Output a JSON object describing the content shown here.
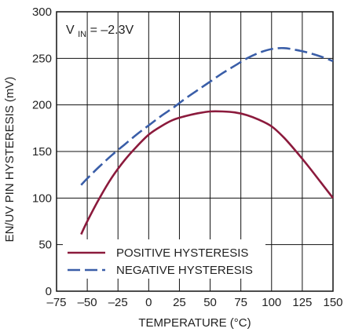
{
  "chart_data": {
    "type": "line",
    "xlabel": "TEMPERATURE (°C)",
    "ylabel": "EN/UV PIN HYSTERESIS (mV)",
    "xlim": [
      -75,
      150
    ],
    "ylim": [
      0,
      300
    ],
    "xticks": [
      "–75",
      "–50",
      "–25",
      "0",
      "25",
      "50",
      "75",
      "100",
      "125",
      "150"
    ],
    "xtick_values": [
      -75,
      -50,
      -25,
      0,
      25,
      50,
      75,
      100,
      125,
      150
    ],
    "yticks": [
      "0",
      "50",
      "100",
      "150",
      "200",
      "250",
      "300"
    ],
    "ytick_values": [
      0,
      50,
      100,
      150,
      200,
      250,
      300
    ],
    "grid": true,
    "legend_position": "bottom-left",
    "annotation": {
      "main": "V",
      "sub": "IN",
      "rest": " = –2.3V"
    },
    "series": [
      {
        "name": "POSITIVE HYSTERESIS",
        "color": "#8b1a3c",
        "dash": "solid",
        "x": [
          -55,
          -50,
          -40,
          -30,
          -20,
          -10,
          0,
          10,
          20,
          30,
          40,
          50,
          60,
          70,
          80,
          90,
          100,
          110,
          120,
          130,
          140,
          150
        ],
        "y": [
          61,
          75,
          100,
          122,
          140,
          155,
          168,
          177,
          184,
          188,
          191,
          193,
          193,
          192,
          189,
          184,
          177,
          165,
          150,
          134,
          117,
          100
        ]
      },
      {
        "name": "NEGATIVE HYSTERESIS",
        "color": "#3a5ea8",
        "dash": "dashed",
        "x": [
          -55,
          -50,
          -40,
          -30,
          -20,
          -10,
          0,
          10,
          20,
          30,
          40,
          50,
          60,
          70,
          80,
          90,
          100,
          110,
          120,
          130,
          140,
          150
        ],
        "y": [
          114,
          121,
          134,
          146,
          157,
          168,
          178,
          188,
          197,
          207,
          216,
          225,
          234,
          242,
          250,
          256,
          260,
          261,
          259,
          256,
          252,
          247
        ]
      }
    ]
  }
}
